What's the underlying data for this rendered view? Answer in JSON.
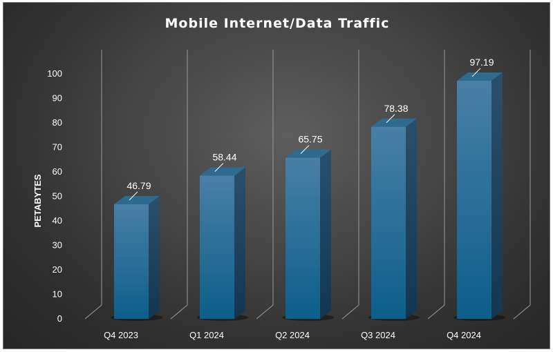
{
  "chart_data": {
    "type": "bar",
    "title": "Mobile Internet/Data Traffic",
    "xlabel": "",
    "ylabel": "PETABYTES",
    "categories": [
      "Q4 2023",
      "Q1 2024",
      "Q2 2024",
      "Q3 2024",
      "Q4 2024"
    ],
    "values": [
      46.79,
      58.44,
      65.75,
      78.38,
      97.19
    ],
    "data_labels": [
      "46.79",
      "58.44",
      "65.75",
      "78.38",
      "97.19"
    ],
    "ylim": [
      0,
      100
    ],
    "yticks": [
      "0",
      "10",
      "20",
      "30",
      "40",
      "50",
      "60",
      "70",
      "80",
      "90",
      "100"
    ],
    "grid": false,
    "style": "3d-column",
    "colors": {
      "bar_front_top": "#4a7fa6",
      "bar_front_bottom": "#0b5f8a",
      "bar_side": "#1b3f5a",
      "bar_top": "#2f6a90",
      "wall_lines": "#9a9a9a"
    }
  }
}
